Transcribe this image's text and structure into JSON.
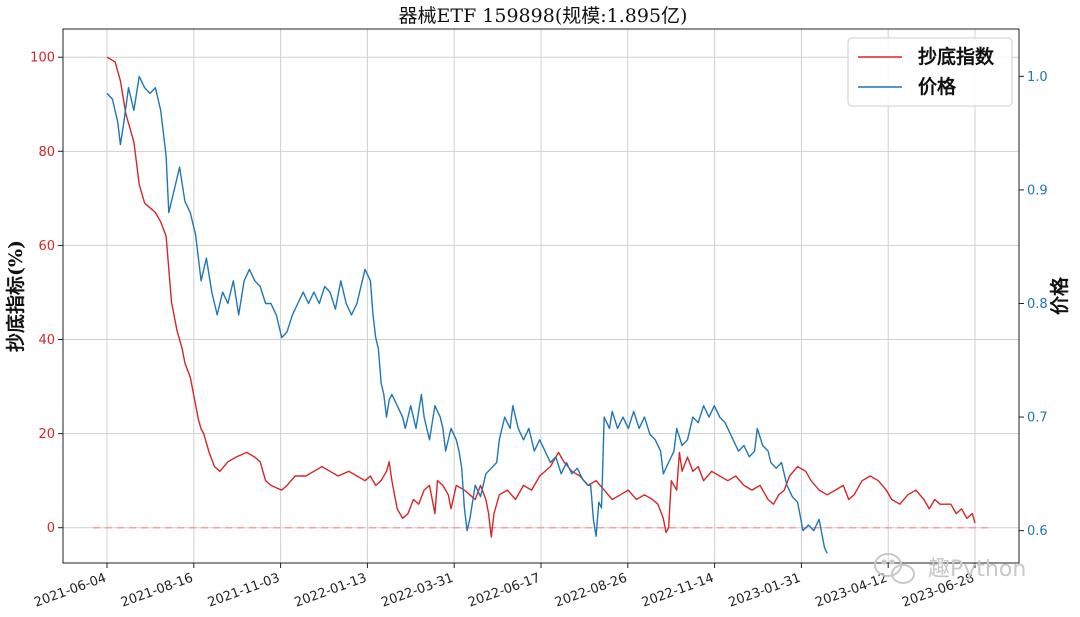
{
  "chart_data": {
    "type": "line",
    "title": "器械ETF  159898(规模:1.895亿)",
    "ylabel_left": "抄底指标(%)",
    "ylabel_right": "价格",
    "ylim_left": [
      -7.5,
      106
    ],
    "ylim_right": [
      0.5715,
      1.0417
    ],
    "yticks_left": [
      0,
      20,
      40,
      60,
      80,
      100
    ],
    "yticks_right": [
      0.6,
      0.7,
      0.8,
      0.9,
      1.0
    ],
    "yticks_right_labels": [
      "0.6",
      "0.7",
      "0.8",
      "0.9",
      "1.0"
    ],
    "xtick_labels": [
      "2021-06-04",
      "2021-08-16",
      "2021-11-03",
      "2022-01-13",
      "2022-03-31",
      "2022-06-17",
      "2022-08-26",
      "2022-11-14",
      "2023-01-31",
      "2023-04-12",
      "2023-06-28"
    ],
    "x_count": 528,
    "reference_line": {
      "y": 0,
      "style": "dashed",
      "color": "#f4a0a0"
    },
    "grid": true,
    "legend_position": "top-right",
    "series": [
      {
        "name": "抄底指数",
        "axis": "left",
        "color": "#d62728",
        "points": [
          [
            0,
            100
          ],
          [
            6,
            99
          ],
          [
            10,
            95
          ],
          [
            14,
            88
          ],
          [
            20,
            82
          ],
          [
            24,
            73
          ],
          [
            28,
            69
          ],
          [
            32,
            68
          ],
          [
            36,
            67
          ],
          [
            40,
            65
          ],
          [
            44,
            62
          ],
          [
            46,
            55
          ],
          [
            48,
            48
          ],
          [
            52,
            42
          ],
          [
            56,
            38
          ],
          [
            58,
            35
          ],
          [
            62,
            32
          ],
          [
            64,
            29
          ],
          [
            66,
            26
          ],
          [
            68,
            23
          ],
          [
            70,
            21
          ],
          [
            72,
            20
          ],
          [
            74,
            18
          ],
          [
            76,
            16
          ],
          [
            80,
            13
          ],
          [
            84,
            12
          ],
          [
            90,
            14
          ],
          [
            96,
            15
          ],
          [
            104,
            16
          ],
          [
            110,
            15
          ],
          [
            114,
            14
          ],
          [
            118,
            10
          ],
          [
            122,
            9
          ],
          [
            130,
            8
          ],
          [
            134,
            9
          ],
          [
            140,
            11
          ],
          [
            148,
            11
          ],
          [
            154,
            12
          ],
          [
            160,
            13
          ],
          [
            166,
            12
          ],
          [
            172,
            11
          ],
          [
            180,
            12
          ],
          [
            186,
            11
          ],
          [
            192,
            10
          ],
          [
            196,
            11
          ],
          [
            200,
            9
          ],
          [
            204,
            10
          ],
          [
            208,
            12
          ],
          [
            210,
            14
          ],
          [
            212,
            10
          ],
          [
            216,
            4
          ],
          [
            220,
            2
          ],
          [
            224,
            3
          ],
          [
            228,
            6
          ],
          [
            232,
            5
          ],
          [
            236,
            8
          ],
          [
            240,
            9
          ],
          [
            244,
            3
          ],
          [
            246,
            10
          ],
          [
            250,
            9
          ],
          [
            254,
            7
          ],
          [
            256,
            4
          ],
          [
            260,
            9
          ],
          [
            266,
            8
          ],
          [
            270,
            7
          ],
          [
            274,
            6
          ],
          [
            278,
            9
          ],
          [
            282,
            6
          ],
          [
            284,
            3
          ],
          [
            286,
            -2
          ],
          [
            288,
            3
          ],
          [
            292,
            7
          ],
          [
            298,
            8
          ],
          [
            304,
            6
          ],
          [
            310,
            9
          ],
          [
            316,
            8
          ],
          [
            322,
            11
          ],
          [
            330,
            13
          ],
          [
            336,
            16
          ],
          [
            340,
            14
          ],
          [
            346,
            12
          ],
          [
            352,
            11
          ],
          [
            358,
            9
          ],
          [
            364,
            10
          ],
          [
            370,
            8
          ],
          [
            376,
            6
          ],
          [
            382,
            7
          ],
          [
            388,
            8
          ],
          [
            394,
            6
          ],
          [
            400,
            7
          ],
          [
            406,
            6
          ],
          [
            410,
            5
          ],
          [
            414,
            2
          ],
          [
            416,
            -1
          ],
          [
            418,
            0
          ],
          [
            420,
            10
          ],
          [
            424,
            8
          ],
          [
            426,
            16
          ],
          [
            428,
            12
          ],
          [
            432,
            15
          ],
          [
            436,
            12
          ],
          [
            440,
            13
          ],
          [
            444,
            10
          ],
          [
            450,
            12
          ],
          [
            456,
            11
          ],
          [
            462,
            10
          ],
          [
            468,
            11
          ],
          [
            474,
            9
          ],
          [
            480,
            8
          ],
          [
            486,
            9
          ],
          [
            492,
            6
          ],
          [
            496,
            5
          ],
          [
            500,
            7
          ],
          [
            504,
            8
          ],
          [
            508,
            11
          ],
          [
            514,
            13
          ],
          [
            520,
            12
          ],
          [
            524,
            10
          ],
          [
            530,
            8
          ],
          [
            536,
            7
          ],
          [
            542,
            8
          ],
          [
            548,
            9
          ],
          [
            552,
            6
          ],
          [
            556,
            7
          ],
          [
            562,
            10
          ],
          [
            568,
            11
          ],
          [
            574,
            10
          ],
          [
            580,
            8
          ],
          [
            584,
            6
          ],
          [
            590,
            5
          ],
          [
            596,
            7
          ],
          [
            602,
            8
          ],
          [
            608,
            6
          ],
          [
            612,
            4
          ],
          [
            616,
            6
          ],
          [
            620,
            5
          ],
          [
            624,
            5
          ],
          [
            628,
            5
          ],
          [
            632,
            3
          ],
          [
            636,
            4
          ],
          [
            640,
            2
          ],
          [
            644,
            3
          ],
          [
            646,
            1
          ]
        ]
      },
      {
        "name": "价格",
        "axis": "right",
        "color": "#1f77b4",
        "points": [
          [
            0,
            0.985
          ],
          [
            4,
            0.98
          ],
          [
            8,
            0.96
          ],
          [
            10,
            0.94
          ],
          [
            12,
            0.955
          ],
          [
            16,
            0.99
          ],
          [
            20,
            0.97
          ],
          [
            24,
            1.0
          ],
          [
            28,
            0.99
          ],
          [
            32,
            0.985
          ],
          [
            36,
            0.99
          ],
          [
            40,
            0.97
          ],
          [
            42,
            0.95
          ],
          [
            44,
            0.93
          ],
          [
            46,
            0.88
          ],
          [
            50,
            0.9
          ],
          [
            54,
            0.92
          ],
          [
            58,
            0.89
          ],
          [
            62,
            0.88
          ],
          [
            66,
            0.86
          ],
          [
            70,
            0.82
          ],
          [
            74,
            0.84
          ],
          [
            78,
            0.81
          ],
          [
            82,
            0.79
          ],
          [
            86,
            0.81
          ],
          [
            90,
            0.8
          ],
          [
            94,
            0.82
          ],
          [
            98,
            0.79
          ],
          [
            102,
            0.82
          ],
          [
            106,
            0.83
          ],
          [
            110,
            0.82
          ],
          [
            114,
            0.815
          ],
          [
            118,
            0.8
          ],
          [
            122,
            0.8
          ],
          [
            126,
            0.79
          ],
          [
            130,
            0.77
          ],
          [
            134,
            0.775
          ],
          [
            138,
            0.79
          ],
          [
            142,
            0.8
          ],
          [
            146,
            0.81
          ],
          [
            150,
            0.8
          ],
          [
            154,
            0.81
          ],
          [
            158,
            0.8
          ],
          [
            162,
            0.815
          ],
          [
            166,
            0.81
          ],
          [
            170,
            0.795
          ],
          [
            174,
            0.82
          ],
          [
            178,
            0.8
          ],
          [
            182,
            0.79
          ],
          [
            186,
            0.8
          ],
          [
            190,
            0.82
          ],
          [
            192,
            0.83
          ],
          [
            196,
            0.82
          ],
          [
            198,
            0.79
          ],
          [
            200,
            0.77
          ],
          [
            202,
            0.76
          ],
          [
            204,
            0.73
          ],
          [
            206,
            0.72
          ],
          [
            208,
            0.7
          ],
          [
            210,
            0.715
          ],
          [
            212,
            0.72
          ],
          [
            216,
            0.71
          ],
          [
            220,
            0.7
          ],
          [
            222,
            0.69
          ],
          [
            226,
            0.71
          ],
          [
            230,
            0.69
          ],
          [
            234,
            0.72
          ],
          [
            236,
            0.7
          ],
          [
            240,
            0.68
          ],
          [
            244,
            0.71
          ],
          [
            248,
            0.7
          ],
          [
            250,
            0.69
          ],
          [
            252,
            0.67
          ],
          [
            256,
            0.69
          ],
          [
            260,
            0.68
          ],
          [
            262,
            0.67
          ],
          [
            264,
            0.655
          ],
          [
            266,
            0.62
          ],
          [
            268,
            0.6
          ],
          [
            270,
            0.61
          ],
          [
            274,
            0.64
          ],
          [
            278,
            0.63
          ],
          [
            282,
            0.65
          ],
          [
            286,
            0.655
          ],
          [
            290,
            0.66
          ],
          [
            292,
            0.68
          ],
          [
            296,
            0.7
          ],
          [
            300,
            0.69
          ],
          [
            302,
            0.71
          ],
          [
            306,
            0.69
          ],
          [
            310,
            0.68
          ],
          [
            314,
            0.69
          ],
          [
            318,
            0.67
          ],
          [
            322,
            0.68
          ],
          [
            326,
            0.67
          ],
          [
            330,
            0.66
          ],
          [
            334,
            0.665
          ],
          [
            338,
            0.65
          ],
          [
            342,
            0.66
          ],
          [
            346,
            0.65
          ],
          [
            350,
            0.655
          ],
          [
            354,
            0.645
          ],
          [
            358,
            0.64
          ],
          [
            360,
            0.64
          ],
          [
            362,
            0.61
          ],
          [
            364,
            0.595
          ],
          [
            366,
            0.625
          ],
          [
            368,
            0.62
          ],
          [
            370,
            0.7
          ],
          [
            374,
            0.69
          ],
          [
            376,
            0.705
          ],
          [
            380,
            0.69
          ],
          [
            384,
            0.7
          ],
          [
            388,
            0.69
          ],
          [
            392,
            0.705
          ],
          [
            396,
            0.69
          ],
          [
            400,
            0.7
          ],
          [
            404,
            0.685
          ],
          [
            408,
            0.68
          ],
          [
            412,
            0.67
          ],
          [
            414,
            0.65
          ],
          [
            418,
            0.66
          ],
          [
            422,
            0.67
          ],
          [
            424,
            0.69
          ],
          [
            428,
            0.675
          ],
          [
            432,
            0.68
          ],
          [
            436,
            0.7
          ],
          [
            440,
            0.695
          ],
          [
            444,
            0.71
          ],
          [
            448,
            0.7
          ],
          [
            452,
            0.71
          ],
          [
            456,
            0.7
          ],
          [
            460,
            0.695
          ],
          [
            466,
            0.68
          ],
          [
            470,
            0.67
          ],
          [
            474,
            0.675
          ],
          [
            478,
            0.665
          ],
          [
            482,
            0.67
          ],
          [
            484,
            0.69
          ],
          [
            488,
            0.675
          ],
          [
            492,
            0.67
          ],
          [
            494,
            0.66
          ],
          [
            498,
            0.655
          ],
          [
            502,
            0.66
          ],
          [
            506,
            0.64
          ],
          [
            510,
            0.63
          ],
          [
            514,
            0.625
          ],
          [
            518,
            0.6
          ],
          [
            522,
            0.605
          ],
          [
            526,
            0.6
          ],
          [
            530,
            0.61
          ],
          [
            534,
            0.585
          ],
          [
            536,
            0.58
          ]
        ]
      }
    ]
  },
  "watermark": "趣Python"
}
